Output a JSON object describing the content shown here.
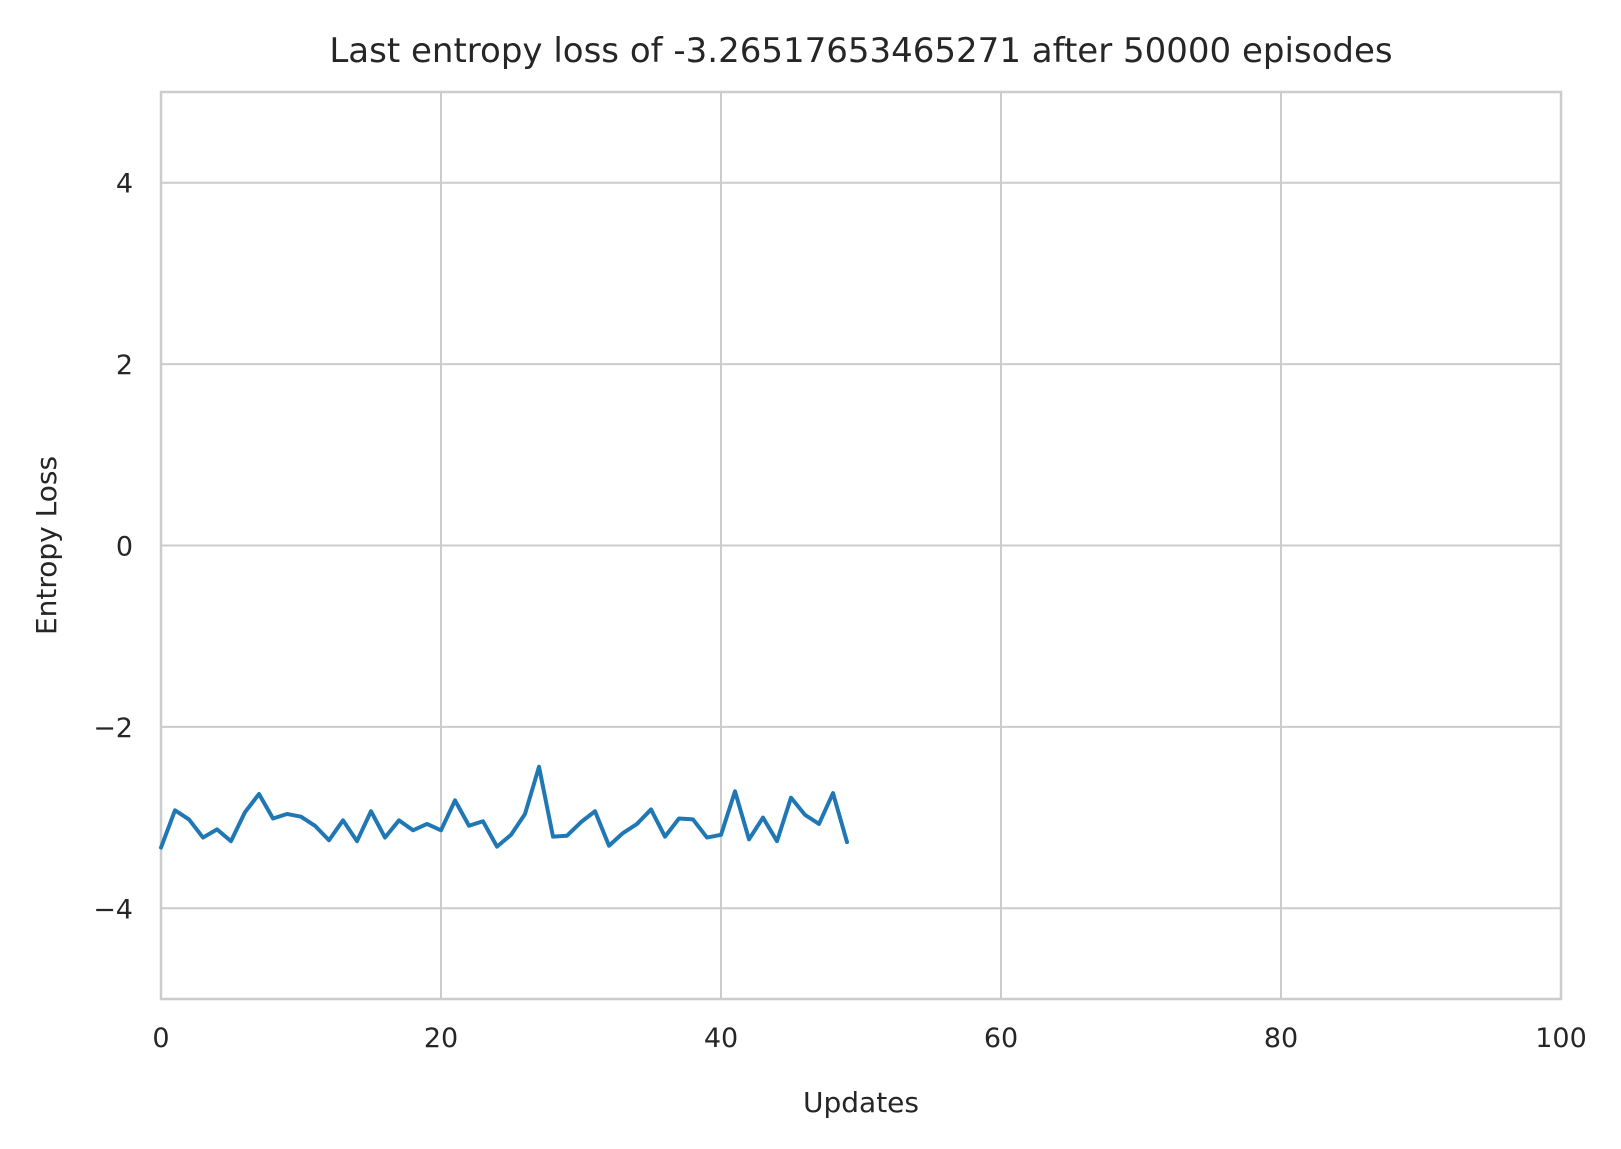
{
  "chart_data": {
    "type": "line",
    "title": "Last entropy loss of -3.26517653465271 after 50000 episodes",
    "xlabel": "Updates",
    "ylabel": "Entropy Loss",
    "xlim": [
      0,
      100
    ],
    "ylim": [
      -5,
      5
    ],
    "x_ticks": [
      0,
      20,
      40,
      60,
      80,
      100
    ],
    "y_ticks": [
      -4,
      -2,
      0,
      2,
      4
    ],
    "x_tick_labels": [
      "0",
      "20",
      "40",
      "60",
      "80",
      "100"
    ],
    "y_tick_labels": [
      "−4",
      "−2",
      "0",
      "2",
      "4"
    ],
    "grid": true,
    "colors": {
      "series": "#1f77b4",
      "grid": "#cccccc",
      "text": "#262626"
    },
    "series": [
      {
        "x": [
          0,
          1,
          2,
          3,
          4,
          5,
          6,
          7,
          8,
          9,
          10,
          11,
          12,
          13,
          14,
          15,
          16,
          17,
          18,
          19,
          20,
          21,
          22,
          23,
          24,
          25,
          26,
          27,
          28,
          29,
          30,
          31,
          32,
          33,
          34,
          35,
          36,
          37,
          38,
          39,
          40,
          41,
          42,
          43,
          44,
          45,
          46,
          47,
          48,
          49
        ],
        "values": [
          -3.33,
          -2.92,
          -3.02,
          -3.22,
          -3.13,
          -3.26,
          -2.94,
          -2.74,
          -3.01,
          -2.96,
          -2.99,
          -3.09,
          -3.25,
          -3.03,
          -3.26,
          -2.93,
          -3.22,
          -3.03,
          -3.14,
          -3.07,
          -3.14,
          -2.81,
          -3.09,
          -3.04,
          -3.32,
          -3.19,
          -2.96,
          -2.44,
          -3.21,
          -3.2,
          -3.05,
          -2.93,
          -3.31,
          -3.17,
          -3.07,
          -2.91,
          -3.21,
          -3.01,
          -3.02,
          -3.22,
          -3.19,
          -2.71,
          -3.24,
          -3.0,
          -3.26,
          -2.78,
          -2.97,
          -3.07,
          -2.73,
          -3.27
        ]
      }
    ]
  }
}
